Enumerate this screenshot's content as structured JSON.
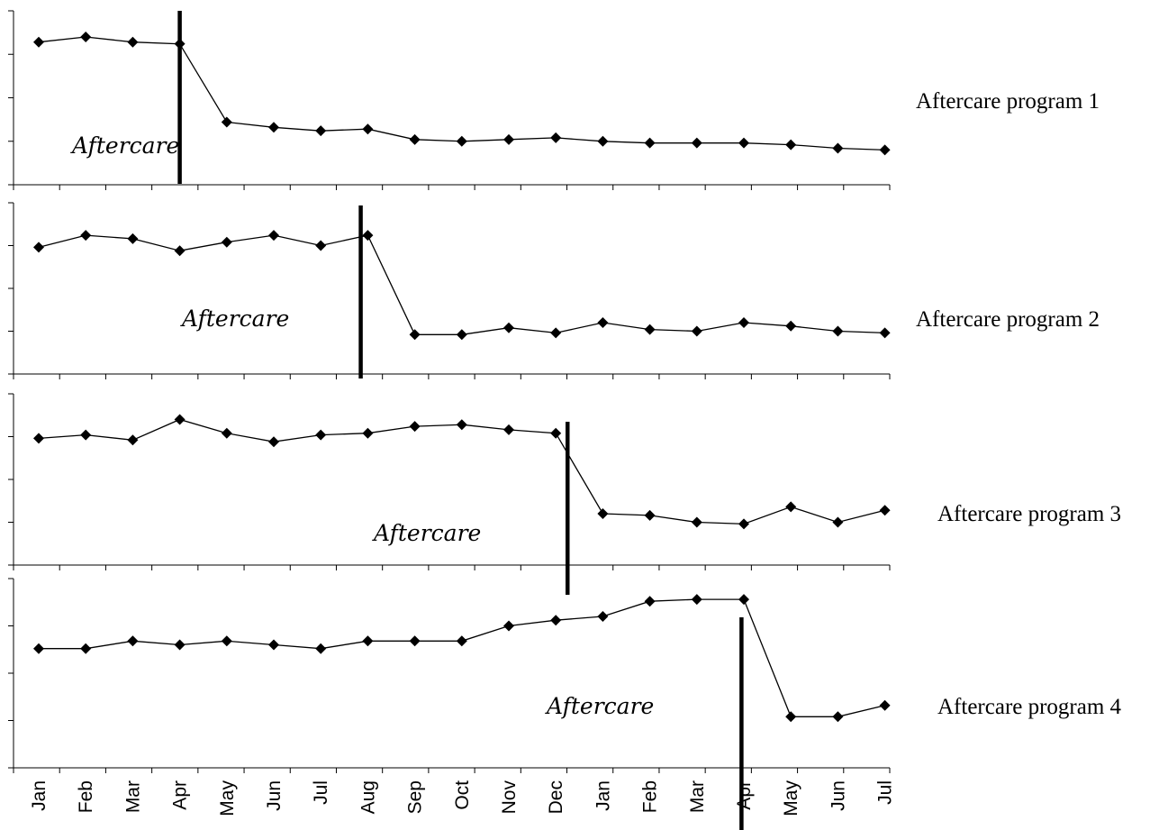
{
  "chart_data": {
    "type": "line",
    "categories": [
      "Jan",
      "Feb",
      "Mar",
      "Apr",
      "May",
      "Jun",
      "Jul",
      "Aug",
      "Sep",
      "Oct",
      "Nov",
      "Dec",
      "Jan",
      "Feb",
      "Mar",
      "Apr",
      "May",
      "Jun",
      "Jul"
    ],
    "ylim": [
      0,
      100
    ],
    "grid": false,
    "legend": "none",
    "panels": [
      {
        "label": "Aftercare program 1",
        "annotation": "Aftercare",
        "intervention_index": 3.0,
        "values": [
          82,
          85,
          82,
          81,
          36,
          33,
          31,
          32,
          26,
          25,
          26,
          27,
          25,
          24,
          24,
          24,
          23,
          21,
          20
        ]
      },
      {
        "label": "Aftercare program 2",
        "annotation": "Aftercare",
        "intervention_index": 6.85,
        "values": [
          74,
          81,
          79,
          72,
          77,
          81,
          75,
          81,
          23,
          23,
          27,
          24,
          30,
          26,
          25,
          30,
          28,
          25,
          24
        ]
      },
      {
        "label": "Aftercare program 3",
        "annotation": "Aftercare",
        "intervention_index": 11.25,
        "values": [
          74,
          76,
          73,
          85,
          77,
          72,
          76,
          77,
          81,
          82,
          79,
          77,
          30,
          29,
          25,
          24,
          34,
          25,
          32
        ]
      },
      {
        "label": "Aftercare program 4",
        "annotation": "Aftercare",
        "intervention_index": 14.95,
        "values": [
          63,
          63,
          67,
          65,
          67,
          65,
          63,
          67,
          67,
          67,
          75,
          78,
          80,
          88,
          89,
          89,
          27,
          27,
          33
        ]
      }
    ]
  }
}
